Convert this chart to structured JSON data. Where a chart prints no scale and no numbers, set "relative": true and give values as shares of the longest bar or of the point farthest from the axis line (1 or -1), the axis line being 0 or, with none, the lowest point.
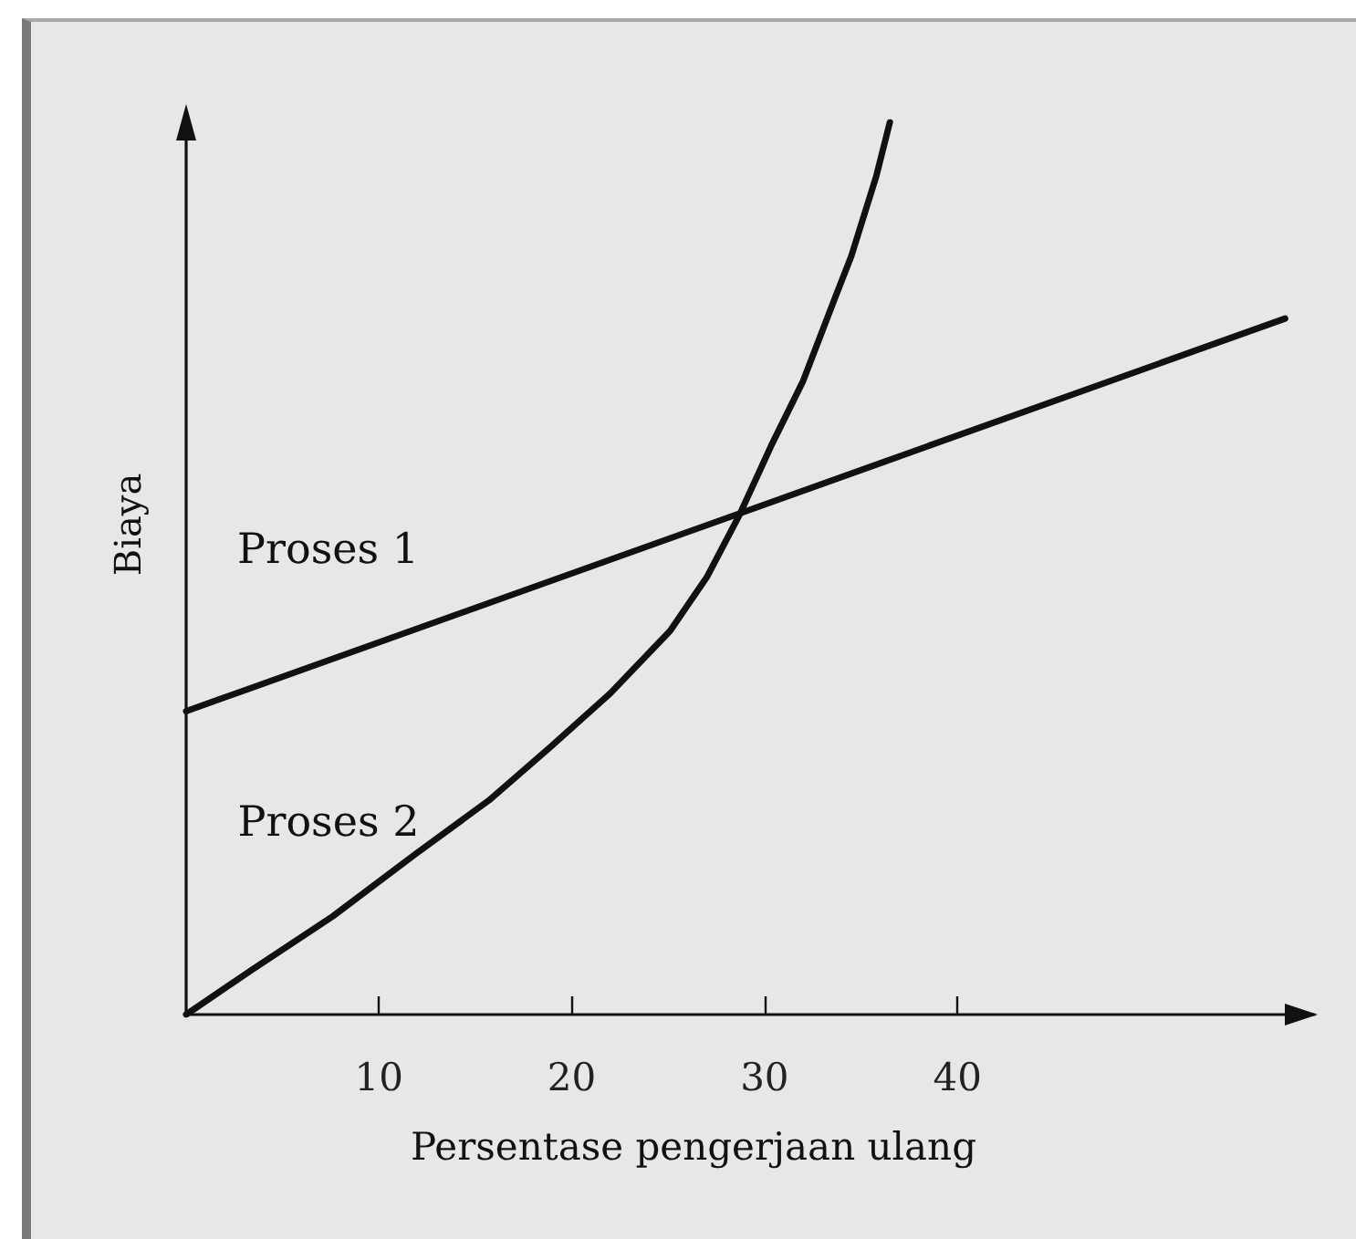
{
  "chart_data": {
    "type": "line",
    "xlabel": "Persentase pengerjaan ulang",
    "ylabel": "Biaya",
    "relative": true,
    "xlim": [
      0,
      58.5
    ],
    "xticks": [
      10,
      20,
      30,
      40
    ],
    "grid": false,
    "legend": false,
    "marker": "none",
    "line_style": "solid",
    "series": [
      {
        "name": "Proses 1",
        "color": "#111111",
        "x": [
          0,
          57
        ],
        "values": [
          0.34,
          0.78
        ]
      },
      {
        "name": "Proses 2",
        "color": "#111111",
        "x": [
          0,
          3.4,
          7.6,
          11.9,
          15.7,
          18.9,
          22,
          25.1,
          27,
          28.7,
          30.4,
          32,
          33.6,
          34.5,
          35.8,
          36.5
        ],
        "values": [
          0,
          0.05,
          0.11,
          0.18,
          0.24,
          0.3,
          0.36,
          0.43,
          0.49,
          0.56,
          0.64,
          0.71,
          0.8,
          0.85,
          0.94,
          1
        ]
      }
    ]
  }
}
